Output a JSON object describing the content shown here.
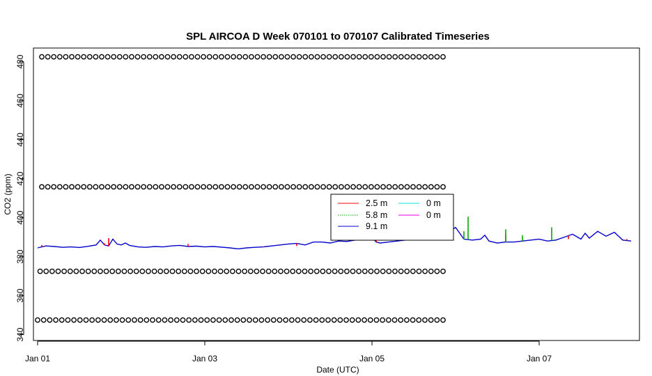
{
  "chart_data": {
    "type": "line",
    "title": "SPL AIRCOA D  Week 070101 to 070107  Calibrated Timeseries",
    "xlabel": "Date (UTC)",
    "ylabel": "CO2 (ppm)",
    "xlim": [
      -0.05,
      7.2
    ],
    "ylim": [
      337,
      487
    ],
    "x_ticks": [
      {
        "value": 0,
        "label": "Jan 01"
      },
      {
        "value": 2,
        "label": "Jan 03"
      },
      {
        "value": 4,
        "label": "Jan 05"
      },
      {
        "value": 6,
        "label": "Jan 07"
      }
    ],
    "y_ticks": [
      340,
      360,
      380,
      400,
      420,
      440,
      460,
      480
    ],
    "legend": {
      "position": "center",
      "entries": [
        {
          "label": "2.5 m",
          "color": "#ff0000",
          "style": "solid"
        },
        {
          "label": "5.8 m",
          "color": "#00aa00",
          "style": "dotted"
        },
        {
          "label": "9.1 m",
          "color": "#0000cc",
          "style": "solid"
        },
        {
          "label": "0 m",
          "color": "#00e5e5",
          "style": "solid"
        },
        {
          "label": "0 m",
          "color": "#e600e6",
          "style": "solid"
        }
      ]
    },
    "series": [
      {
        "name": "9.1 m",
        "color": "#0000cc",
        "x": [
          0,
          0.1,
          0.2,
          0.3,
          0.4,
          0.5,
          0.6,
          0.7,
          0.75,
          0.8,
          0.85,
          0.9,
          0.95,
          1.0,
          1.05,
          1.1,
          1.2,
          1.3,
          1.4,
          1.5,
          1.6,
          1.7,
          1.8,
          1.9,
          2.0,
          2.1,
          2.2,
          2.3,
          2.4,
          2.5,
          2.6,
          2.7,
          2.8,
          2.9,
          3.0,
          3.1,
          3.2,
          3.3,
          3.4,
          3.5,
          3.6,
          3.7,
          3.8,
          3.9,
          4.0,
          4.05,
          4.1,
          4.2,
          4.3,
          4.4,
          4.5,
          4.6,
          4.7,
          4.8,
          4.9,
          5.0,
          5.1,
          5.2,
          5.3,
          5.35,
          5.4,
          5.5,
          5.6,
          5.7,
          5.8,
          5.9,
          6.0,
          6.1,
          6.2,
          6.3,
          6.4,
          6.5,
          6.55,
          6.6,
          6.7,
          6.8,
          6.9,
          7.0,
          7.1
        ],
        "y": [
          384.5,
          385.5,
          385.2,
          384.8,
          385.0,
          384.7,
          385.3,
          386.0,
          388.5,
          386.0,
          385.5,
          389.0,
          386.5,
          386.0,
          387.0,
          385.8,
          385.0,
          384.8,
          385.2,
          385.0,
          385.5,
          385.8,
          385.2,
          385.4,
          385.0,
          385.2,
          384.9,
          384.5,
          384.0,
          384.5,
          384.8,
          385.0,
          385.5,
          386.0,
          386.5,
          386.8,
          386.0,
          387.5,
          387.5,
          387.0,
          388.0,
          387.8,
          388.5,
          389.0,
          390.0,
          387.5,
          387.0,
          387.5,
          388.0,
          388.5,
          389.0,
          390.0,
          391.0,
          391.5,
          392.0,
          395.0,
          389.0,
          388.5,
          389.0,
          391.0,
          388.0,
          387.0,
          387.5,
          387.5,
          388.0,
          388.5,
          389.0,
          388.0,
          388.5,
          390.0,
          391.5,
          389.0,
          392.0,
          389.5,
          393.0,
          390.5,
          392.5,
          388.5,
          388.0
        ]
      },
      {
        "name": "2.5 m",
        "color": "#ff0000",
        "x": [
          0.05,
          0.8,
          0.85,
          1.8,
          2.7,
          3.1,
          4.05,
          5.6,
          6.35,
          7.05
        ],
        "y": [
          386.0,
          386.8,
          389.5,
          386.5,
          385.2,
          385.5,
          391.0,
          391.5,
          389.0,
          389.0
        ]
      },
      {
        "name": "5.8 m",
        "color": "#00aa00",
        "x": [
          5.1,
          5.15,
          5.6,
          5.8,
          6.15
        ],
        "y": [
          393.0,
          400.5,
          394.0,
          391.0,
          395.0
        ]
      }
    ],
    "calibration_points": {
      "marker": "o",
      "series": [
        {
          "y": 482.5,
          "x_start": 0.05,
          "x_end": 4.85,
          "count": 68
        },
        {
          "y": 415.8,
          "x_start": 0.05,
          "x_end": 4.85,
          "count": 68
        },
        {
          "y": 372.5,
          "x_start": 0.03,
          "x_end": 4.85,
          "count": 68
        },
        {
          "y": 347.5,
          "x_start": 0.0,
          "x_end": 4.85,
          "count": 68
        }
      ]
    }
  }
}
